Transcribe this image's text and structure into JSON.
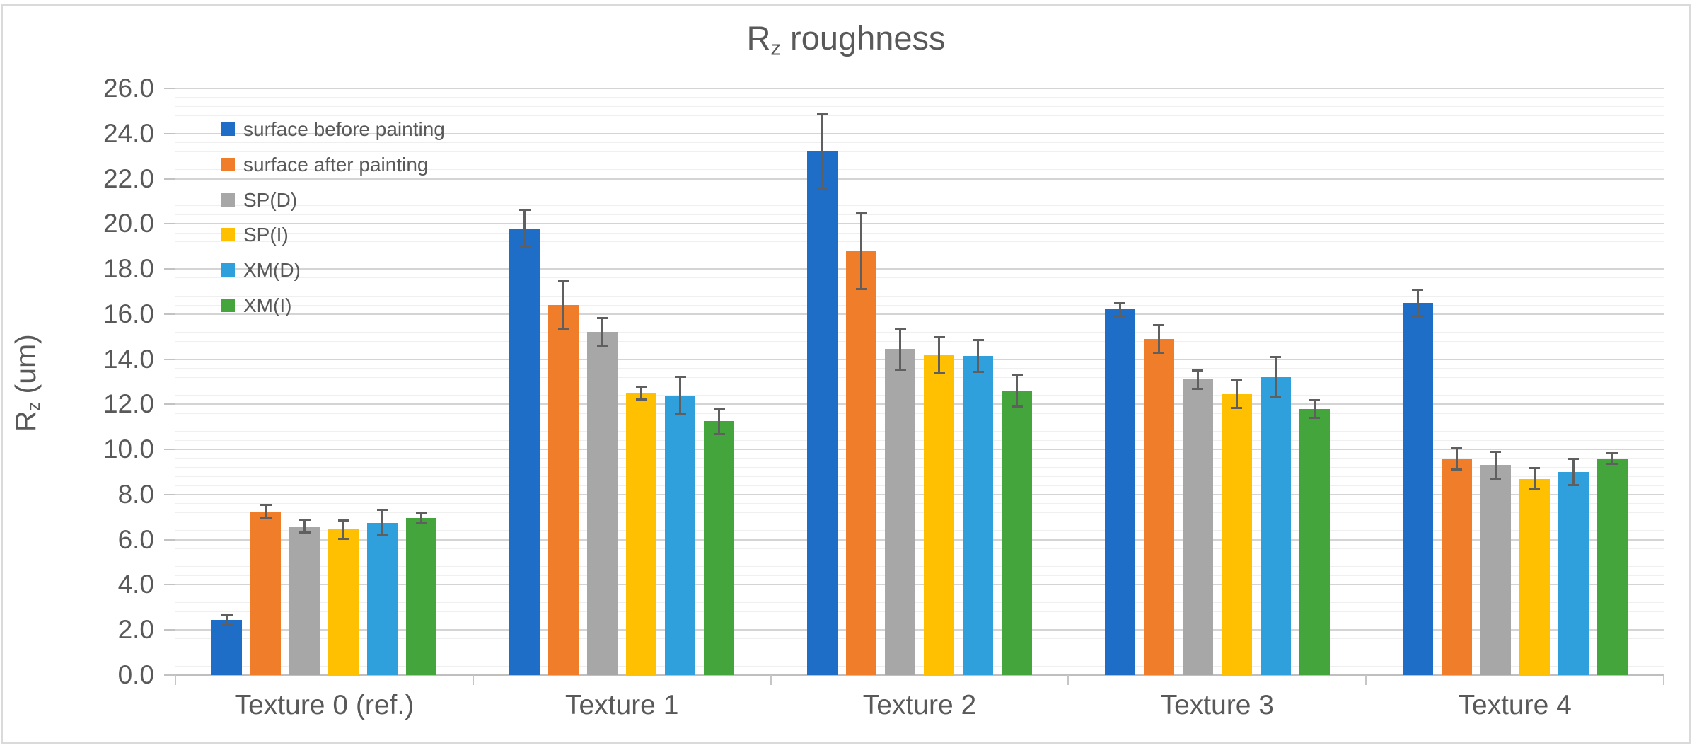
{
  "title": {
    "prefix": "R",
    "subscript": "z",
    "suffix": " roughness"
  },
  "y_axis_title": {
    "prefix": "R",
    "subscript": "z",
    "suffix": " (um)"
  },
  "chart_data": {
    "type": "bar",
    "title": "Rz roughness",
    "ylabel": "Rz (um)",
    "xlabel": "",
    "categories": [
      "Texture 0 (ref.)",
      "Texture 1",
      "Texture 2",
      "Texture 3",
      "Texture 4"
    ],
    "series": [
      {
        "name": "surface before painting",
        "color": "#1E6EC8",
        "values": [
          2.45,
          19.8,
          23.2,
          16.2,
          16.5
        ],
        "errors": [
          0.25,
          0.85,
          1.7,
          0.3,
          0.6
        ]
      },
      {
        "name": "surface after painting",
        "color": "#F07D2A",
        "values": [
          7.25,
          16.4,
          18.8,
          14.9,
          9.6
        ],
        "errors": [
          0.32,
          1.1,
          1.7,
          0.63,
          0.5
        ]
      },
      {
        "name": "SP(D)",
        "color": "#A7A7A7",
        "values": [
          6.6,
          15.2,
          14.45,
          13.1,
          9.3
        ],
        "errors": [
          0.3,
          0.65,
          0.93,
          0.42,
          0.62
        ]
      },
      {
        "name": "SP(I)",
        "color": "#FFC001",
        "values": [
          6.45,
          12.5,
          14.2,
          12.45,
          8.7
        ],
        "errors": [
          0.42,
          0.3,
          0.8,
          0.63,
          0.49
        ]
      },
      {
        "name": "XM(D)",
        "color": "#2FA0DC",
        "values": [
          6.75,
          12.4,
          14.15,
          13.2,
          9.0
        ],
        "errors": [
          0.58,
          0.85,
          0.72,
          0.92,
          0.61
        ]
      },
      {
        "name": "XM(I)",
        "color": "#43A53C",
        "values": [
          6.95,
          11.25,
          12.6,
          11.8,
          9.6
        ],
        "errors": [
          0.23,
          0.58,
          0.72,
          0.41,
          0.24
        ]
      }
    ],
    "ylim": [
      0,
      26.0
    ],
    "ytick_step": 2.0,
    "yminor_step": 0.4,
    "ytick_decimals": 1,
    "grid": "horizontal major+minor",
    "legend_position": "inside upper-left",
    "error_bars": true
  },
  "colors": {
    "text": "#595959",
    "major_grid": "#D4D4D4",
    "minor_grid": "#EFEFEF",
    "axis_line": "#BFBFBF",
    "error_bar": "#5F5F5F",
    "figure_border": "#DADADA"
  }
}
